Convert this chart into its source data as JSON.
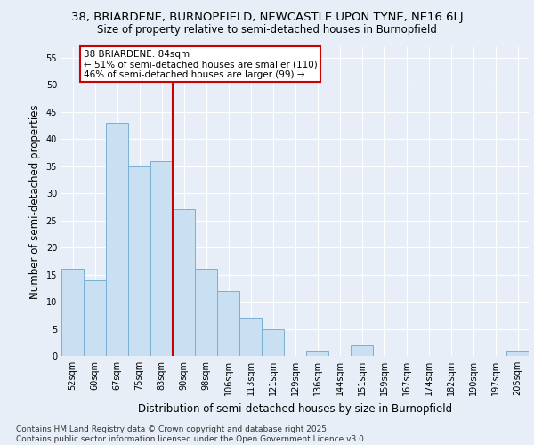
{
  "title": "38, BRIARDENE, BURNOPFIELD, NEWCASTLE UPON TYNE, NE16 6LJ",
  "subtitle": "Size of property relative to semi-detached houses in Burnopfield",
  "xlabel": "Distribution of semi-detached houses by size in Burnopfield",
  "ylabel": "Number of semi-detached properties",
  "categories": [
    "52sqm",
    "60sqm",
    "67sqm",
    "75sqm",
    "83sqm",
    "90sqm",
    "98sqm",
    "106sqm",
    "113sqm",
    "121sqm",
    "129sqm",
    "136sqm",
    "144sqm",
    "151sqm",
    "159sqm",
    "167sqm",
    "174sqm",
    "182sqm",
    "190sqm",
    "197sqm",
    "205sqm"
  ],
  "values": [
    16,
    14,
    43,
    35,
    36,
    27,
    16,
    12,
    7,
    5,
    0,
    1,
    0,
    2,
    0,
    0,
    0,
    0,
    0,
    0,
    1
  ],
  "bar_color": "#c9dff2",
  "bar_edgecolor": "#7aafd4",
  "vline_color": "#cc0000",
  "annotation_text": "38 BRIARDENE: 84sqm\n← 51% of semi-detached houses are smaller (110)\n46% of semi-detached houses are larger (99) →",
  "annotation_box_edgecolor": "#cc0000",
  "ylim": [
    0,
    57
  ],
  "yticks": [
    0,
    5,
    10,
    15,
    20,
    25,
    30,
    35,
    40,
    45,
    50,
    55
  ],
  "footer": "Contains HM Land Registry data © Crown copyright and database right 2025.\nContains public sector information licensed under the Open Government Licence v3.0.",
  "background_color": "#e8eef8",
  "plot_background": "#e8eef8",
  "grid_color": "#ffffff",
  "title_fontsize": 9.5,
  "subtitle_fontsize": 8.5,
  "axis_label_fontsize": 8.5,
  "tick_fontsize": 7,
  "footer_fontsize": 6.5,
  "annotation_fontsize": 7.5
}
